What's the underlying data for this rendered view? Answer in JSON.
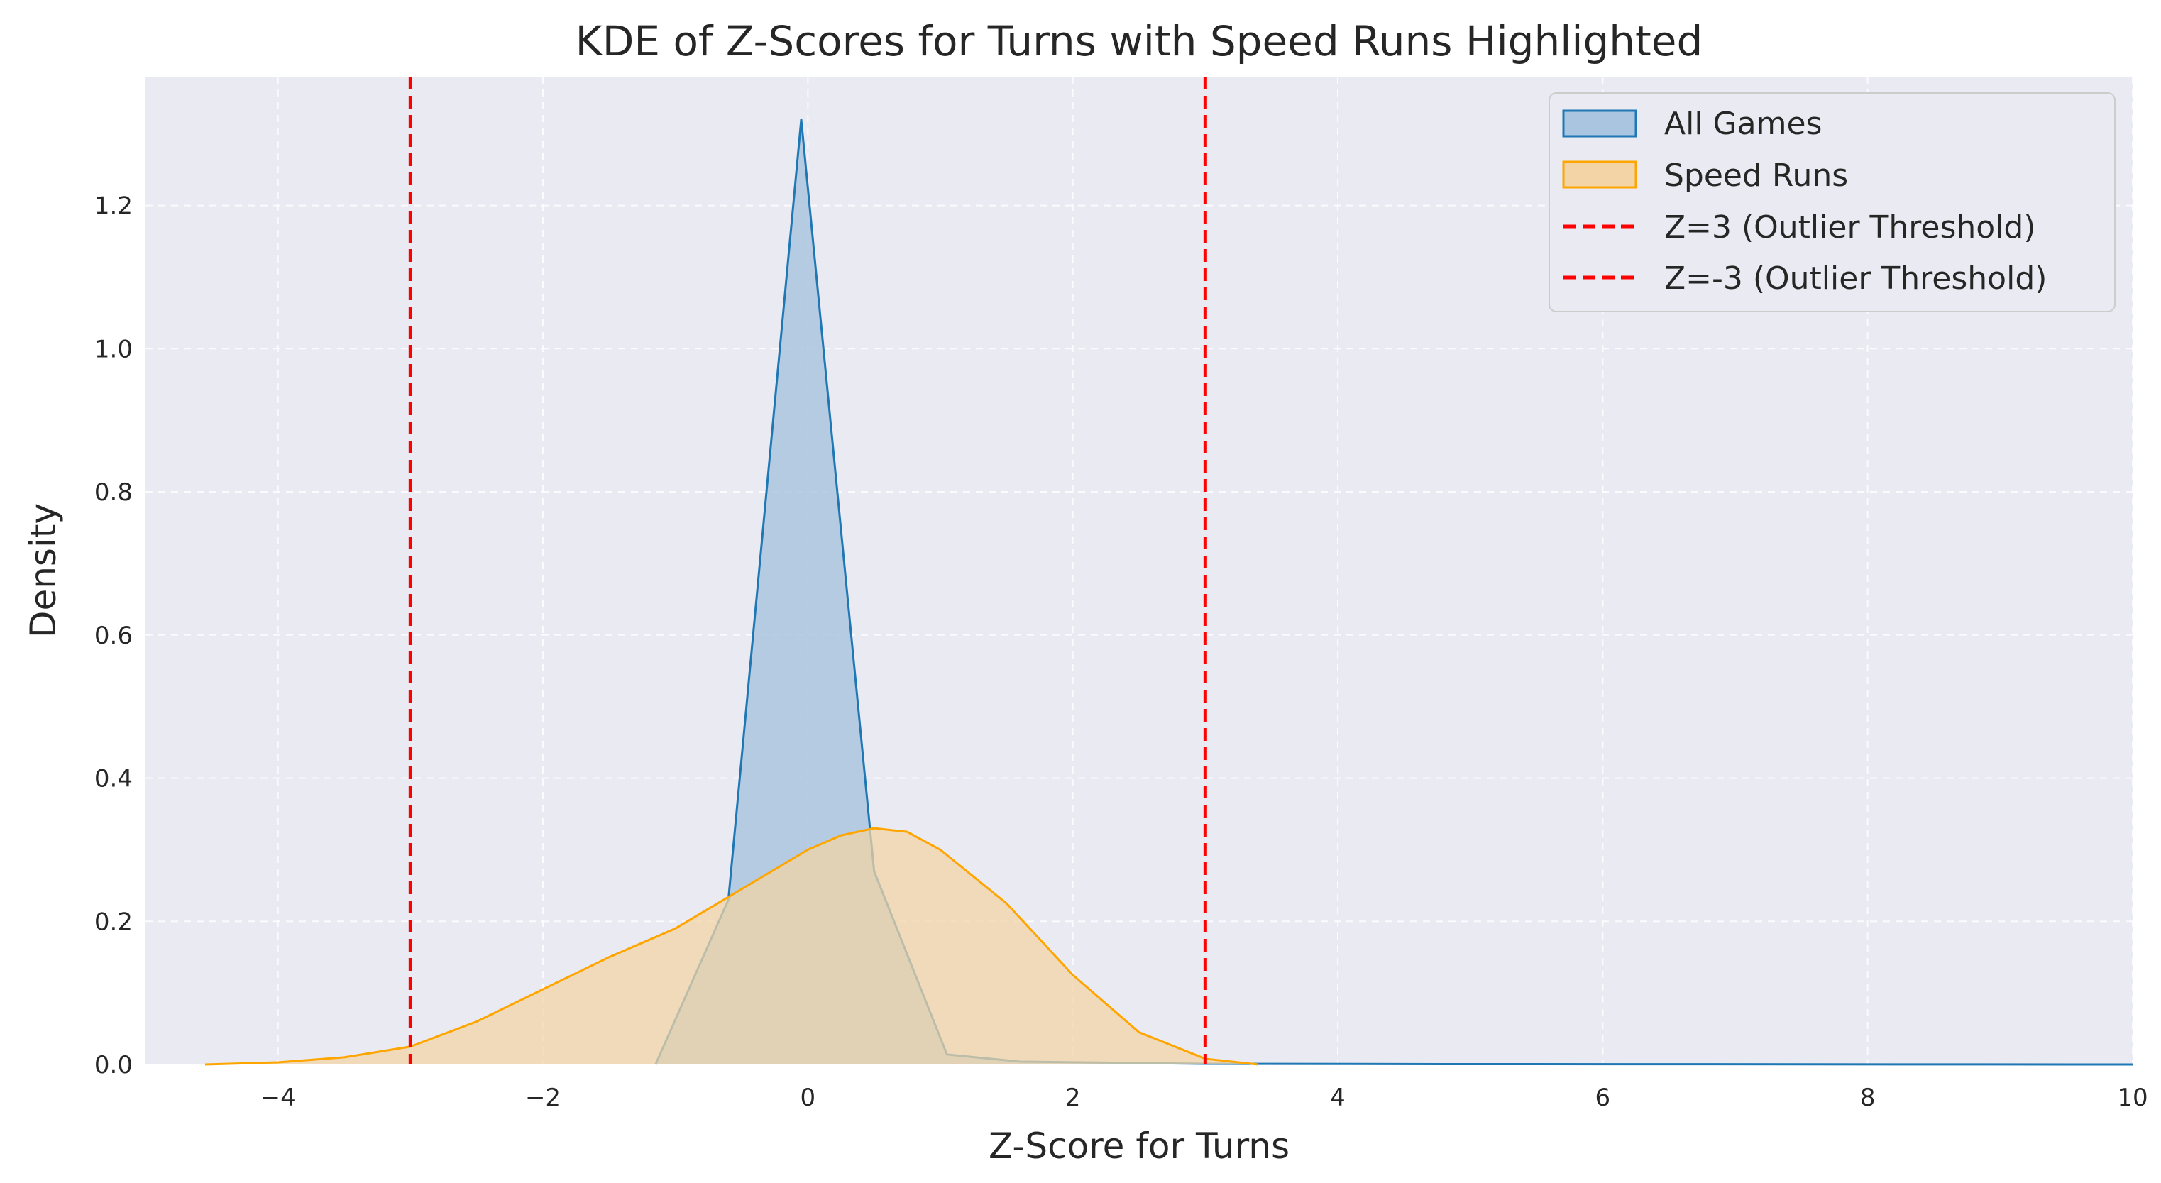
{
  "chart_data": {
    "type": "area",
    "title": "KDE of Z-Scores for Turns with Speed Runs Highlighted",
    "xlabel": "Z-Score for Turns",
    "ylabel": "Density",
    "xlim": [
      -5.0,
      10.0
    ],
    "ylim": [
      0.0,
      1.38
    ],
    "xticks": [
      -4,
      -2,
      0,
      2,
      4,
      6,
      8,
      10
    ],
    "xtick_labels": [
      "−4",
      "−2",
      "0",
      "2",
      "4",
      "6",
      "8",
      "10"
    ],
    "yticks": [
      0.0,
      0.2,
      0.4,
      0.6,
      0.8,
      1.0,
      1.2
    ],
    "ytick_labels": [
      "0.0",
      "0.2",
      "0.4",
      "0.6",
      "0.8",
      "1.0",
      "1.2"
    ],
    "grid": true,
    "legend_position": "top-right",
    "series": [
      {
        "name": "All Games",
        "color": "#1f77b4",
        "fill": "#aac5df",
        "x": [
          -1.15,
          -0.6,
          -0.05,
          0.5,
          1.05,
          1.6,
          3.0,
          5.0,
          10.0
        ],
        "y": [
          0.0,
          0.23,
          1.32,
          0.27,
          0.014,
          0.004,
          0.001,
          0.0005,
          0.0
        ]
      },
      {
        "name": "Speed Runs",
        "color": "#ffa500",
        "fill": "#f2d4a6",
        "x": [
          -4.55,
          -4.0,
          -3.5,
          -3.0,
          -2.5,
          -2.0,
          -1.5,
          -1.0,
          -0.5,
          0.0,
          0.25,
          0.5,
          0.75,
          1.0,
          1.5,
          2.0,
          2.5,
          3.0,
          3.4
        ],
        "y": [
          0.0,
          0.003,
          0.01,
          0.025,
          0.06,
          0.105,
          0.15,
          0.19,
          0.245,
          0.3,
          0.32,
          0.33,
          0.325,
          0.3,
          0.225,
          0.125,
          0.045,
          0.008,
          0.0
        ]
      }
    ],
    "thresholds": [
      {
        "name": "Z=3 (Outlier Threshold)",
        "x": 3,
        "color": "#ff0000"
      },
      {
        "name": "Z=-3 (Outlier Threshold)",
        "x": -3,
        "color": "#ff0000"
      }
    ]
  }
}
